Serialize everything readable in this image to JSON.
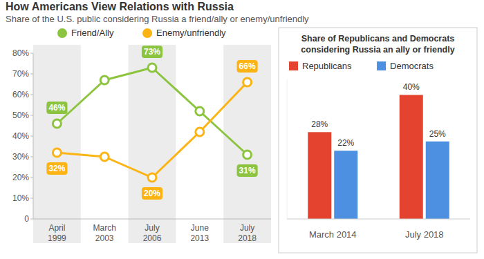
{
  "chart_data": [
    {
      "type": "line",
      "title": "How Americans View Relations with Russia",
      "subtitle": "Share of the U.S. public considering Russia a friend/ally or enemy/unfriendly",
      "categories": [
        "April 1999",
        "March 2003",
        "July 2006",
        "June 2013",
        "July 2018"
      ],
      "series": [
        {
          "name": "Friend/Ally",
          "color": "#8cc43f",
          "marker": "circle",
          "values": [
            46,
            67,
            73,
            52,
            31
          ],
          "value_labels": [
            "46%",
            null,
            "73%",
            null,
            "31%"
          ]
        },
        {
          "name": "Enemy/unfriendly",
          "color": "#fbb414",
          "marker": "circle",
          "values": [
            32,
            30,
            20,
            42,
            66
          ],
          "value_labels": [
            "32%",
            null,
            "20%",
            null,
            "66%"
          ]
        }
      ],
      "ylim": [
        0,
        80
      ],
      "yticks": [
        0,
        {
          "value": 10,
          "label": "10%"
        },
        {
          "value": 20,
          "label": "20%"
        },
        {
          "value": 30,
          "label": "30%"
        },
        {
          "value": 40,
          "label": "40%"
        },
        {
          "value": 50,
          "label": "50%"
        },
        {
          "value": 60,
          "label": "60%"
        },
        {
          "value": 70,
          "label": "70%"
        },
        {
          "value": 80,
          "label": "80%"
        }
      ],
      "grid": false,
      "legend": "top",
      "data_labels": true
    },
    {
      "type": "bar",
      "title": "Share of Republicans and Democrats considering Russia an ally or friendly",
      "categories": [
        "March 2014",
        "July 2018"
      ],
      "series": [
        {
          "name": "Republicans",
          "color": "#e3432f",
          "values": [
            28,
            40
          ],
          "value_labels": [
            "28%",
            "40%"
          ]
        },
        {
          "name": "Democrats",
          "color": "#4d8fe0",
          "values": [
            22,
            25
          ],
          "value_labels": [
            "22%",
            "25%"
          ]
        }
      ],
      "ylim": [
        0,
        45
      ],
      "legend": "top",
      "data_labels": true,
      "tick_labels": "x"
    }
  ]
}
